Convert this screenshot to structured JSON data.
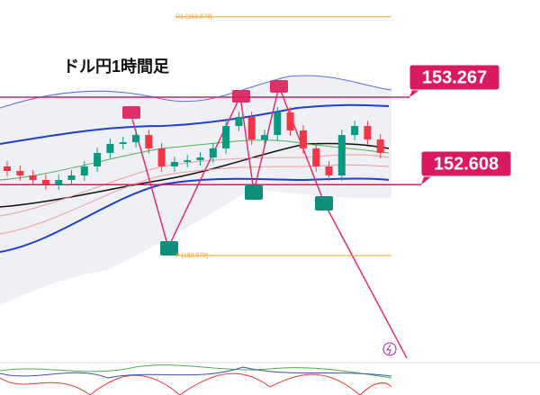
{
  "chart_data": {
    "type": "candlestick",
    "title": "ドル円1時間足",
    "ylim": [
      151.3,
      154.0
    ],
    "open": [
      152.745,
      152.711,
      152.677,
      152.643,
      152.609,
      152.643,
      152.677,
      152.745,
      152.847,
      152.915,
      152.928,
      152.982,
      152.881,
      152.745,
      152.779,
      152.792,
      152.813,
      152.881,
      153.05,
      153.118,
      152.948,
      152.982,
      153.152,
      153.016,
      152.881,
      152.745,
      152.677,
      152.982,
      153.05,
      152.948
    ],
    "high": [
      152.785,
      152.751,
      152.717,
      152.683,
      152.683,
      152.717,
      152.785,
      152.887,
      152.955,
      152.968,
      153.022,
      153.022,
      152.921,
      152.819,
      152.832,
      152.853,
      152.921,
      153.09,
      153.158,
      153.158,
      153.022,
      153.192,
      153.192,
      153.056,
      152.921,
      152.785,
      153.022,
      153.09,
      153.09,
      152.988
    ],
    "low": [
      152.671,
      152.637,
      152.603,
      152.569,
      152.569,
      152.603,
      152.637,
      152.705,
      152.807,
      152.875,
      152.888,
      152.841,
      152.705,
      152.705,
      152.739,
      152.752,
      152.773,
      152.841,
      153.01,
      152.908,
      152.908,
      152.942,
      152.976,
      152.841,
      152.705,
      152.637,
      152.637,
      152.942,
      152.908,
      152.807
    ],
    "close": [
      152.711,
      152.677,
      152.643,
      152.609,
      152.643,
      152.677,
      152.745,
      152.847,
      152.915,
      152.928,
      152.982,
      152.881,
      152.745,
      152.779,
      152.792,
      152.813,
      152.881,
      153.05,
      153.118,
      152.948,
      152.982,
      153.152,
      153.016,
      152.881,
      152.745,
      152.677,
      152.982,
      153.05,
      152.948,
      152.847
    ],
    "up_color": "#089981",
    "down_color": "#f23645",
    "levels": [
      {
        "label": "R1 (153.873)",
        "value": 153.873,
        "color": "#f0a030"
      },
      {
        "label": "P (152.073)",
        "value": 152.073,
        "color": "#f0a030"
      }
    ],
    "callouts": [
      {
        "value": 153.267,
        "color": "#d81b60"
      },
      {
        "value": 152.608,
        "color": "#d81b60"
      }
    ]
  }
}
